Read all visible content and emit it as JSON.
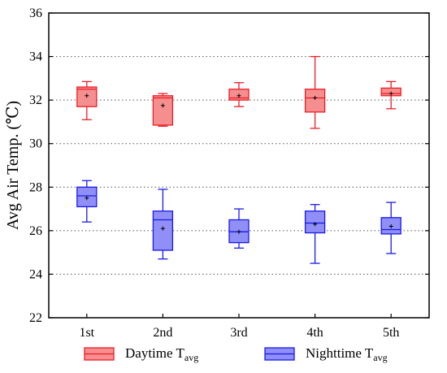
{
  "chart_data": {
    "type": "box",
    "title": "",
    "xlabel": "",
    "ylabel": "Avg Air Temp. (℃)",
    "ylim": [
      22,
      36
    ],
    "yticks": [
      22,
      24,
      26,
      28,
      30,
      32,
      34,
      36
    ],
    "ytick_labels": [
      "22",
      "24",
      "26",
      "28",
      "30",
      "32",
      "34",
      "36"
    ],
    "categories": [
      "1st",
      "2nd",
      "3rd",
      "4th",
      "5th"
    ],
    "grid": "horizontal-dotted",
    "legend_position": "bottom",
    "series": [
      {
        "name": "Daytime T",
        "name_sub": "avg",
        "color": "#ee1c25",
        "fill": "#f58f8f",
        "boxes": [
          {
            "min": 31.1,
            "q1": 31.7,
            "median": 32.5,
            "q3": 32.6,
            "max": 32.85,
            "mean": 32.2
          },
          {
            "min": 30.8,
            "q1": 30.85,
            "median": 32.1,
            "q3": 32.2,
            "max": 32.3,
            "mean": 31.75
          },
          {
            "min": 31.7,
            "q1": 32.0,
            "median": 32.1,
            "q3": 32.5,
            "max": 32.8,
            "mean": 32.2
          },
          {
            "min": 30.7,
            "q1": 31.45,
            "median": 32.1,
            "q3": 32.5,
            "max": 34.0,
            "mean": 32.1
          },
          {
            "min": 31.6,
            "q1": 32.2,
            "median": 32.3,
            "q3": 32.55,
            "max": 32.85,
            "mean": 32.3
          }
        ]
      },
      {
        "name": "Nighttime T",
        "name_sub": "avg",
        "color": "#1a1aee",
        "fill": "#8f8ff5",
        "boxes": [
          {
            "min": 26.4,
            "q1": 27.1,
            "median": 27.6,
            "q3": 28.0,
            "max": 28.3,
            "mean": 27.5
          },
          {
            "min": 24.7,
            "q1": 25.1,
            "median": 26.5,
            "q3": 26.9,
            "max": 27.9,
            "mean": 26.1
          },
          {
            "min": 25.2,
            "q1": 25.45,
            "median": 25.95,
            "q3": 26.5,
            "max": 27.0,
            "mean": 25.95
          },
          {
            "min": 24.5,
            "q1": 25.9,
            "median": 26.35,
            "q3": 26.9,
            "max": 27.2,
            "mean": 26.3
          },
          {
            "min": 24.95,
            "q1": 25.85,
            "median": 26.05,
            "q3": 26.6,
            "max": 27.3,
            "mean": 26.2
          }
        ]
      }
    ]
  }
}
